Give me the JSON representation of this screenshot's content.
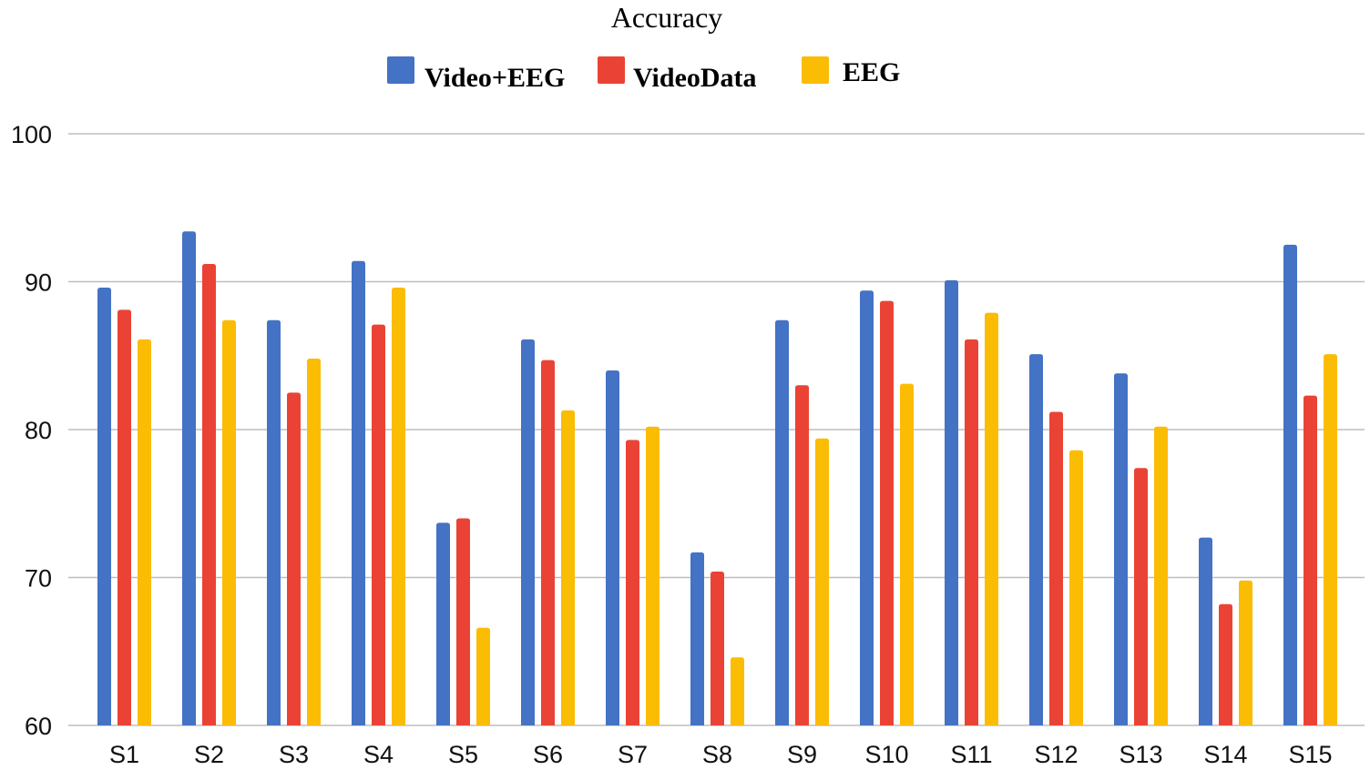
{
  "chart_data": {
    "type": "bar",
    "title": "Accuracy",
    "xlabel": "",
    "ylabel": "",
    "ylim": [
      60,
      100
    ],
    "yticks": [
      60,
      70,
      80,
      90,
      100
    ],
    "grid": true,
    "legend_position": "top-center",
    "categories": [
      "S1",
      "S2",
      "S3",
      "S4",
      "S5",
      "S6",
      "S7",
      "S8",
      "S9",
      "S10",
      "S11",
      "S12",
      "S13",
      "S14",
      "S15"
    ],
    "series": [
      {
        "name": "Video+EEG",
        "color": "#4472c4",
        "values": [
          89.6,
          93.4,
          87.4,
          91.4,
          73.7,
          86.1,
          84.0,
          71.7,
          87.4,
          89.4,
          90.1,
          85.1,
          83.8,
          72.7,
          92.5
        ]
      },
      {
        "name": "VideoData",
        "color": "#ea4335",
        "values": [
          88.1,
          91.2,
          82.5,
          87.1,
          74.0,
          84.7,
          79.3,
          70.4,
          83.0,
          88.7,
          86.1,
          81.2,
          77.4,
          68.2,
          82.3
        ]
      },
      {
        "name": "EEG",
        "color": "#fbbc04",
        "values": [
          86.1,
          87.4,
          84.8,
          89.6,
          66.6,
          81.3,
          80.2,
          64.6,
          79.4,
          83.1,
          87.9,
          78.6,
          80.2,
          69.8,
          85.1
        ]
      }
    ]
  }
}
